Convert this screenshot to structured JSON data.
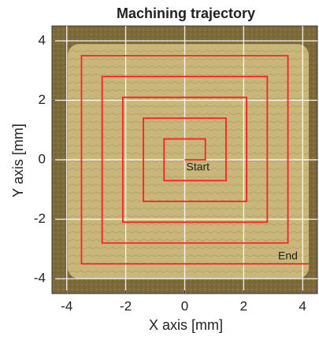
{
  "chart_data": {
    "type": "line",
    "title": "Machining trajectory",
    "x_label": "X axis [mm]",
    "y_label": "Y axis [mm]",
    "series": [
      {
        "color": "#ff2020",
        "x": [
          0,
          0.7,
          0.7,
          -0.7,
          -0.7,
          1.4,
          1.4,
          -1.4,
          -1.4,
          2.1,
          2.1,
          -2.1,
          -2.1,
          2.8,
          2.8,
          -2.8,
          -2.8,
          3.5,
          3.5,
          -3.5,
          -3.5,
          4.2
        ],
        "values": [
          0,
          0,
          0.7,
          0.7,
          -0.7,
          -0.7,
          1.4,
          1.4,
          -1.4,
          -1.4,
          2.1,
          2.1,
          -2.1,
          -2.1,
          2.8,
          2.8,
          -2.8,
          -2.8,
          3.5,
          3.5,
          -3.5,
          -3.5
        ]
      }
    ],
    "annotations": [
      "Start",
      "End"
    ],
    "xlim": [
      -4.5,
      4.5
    ],
    "ylim": [
      -4.5,
      4.5
    ],
    "xticks": [
      -4,
      -2,
      0,
      2,
      4
    ],
    "yticks": [
      -4,
      -2,
      0,
      2,
      4
    ],
    "grid": true
  }
}
